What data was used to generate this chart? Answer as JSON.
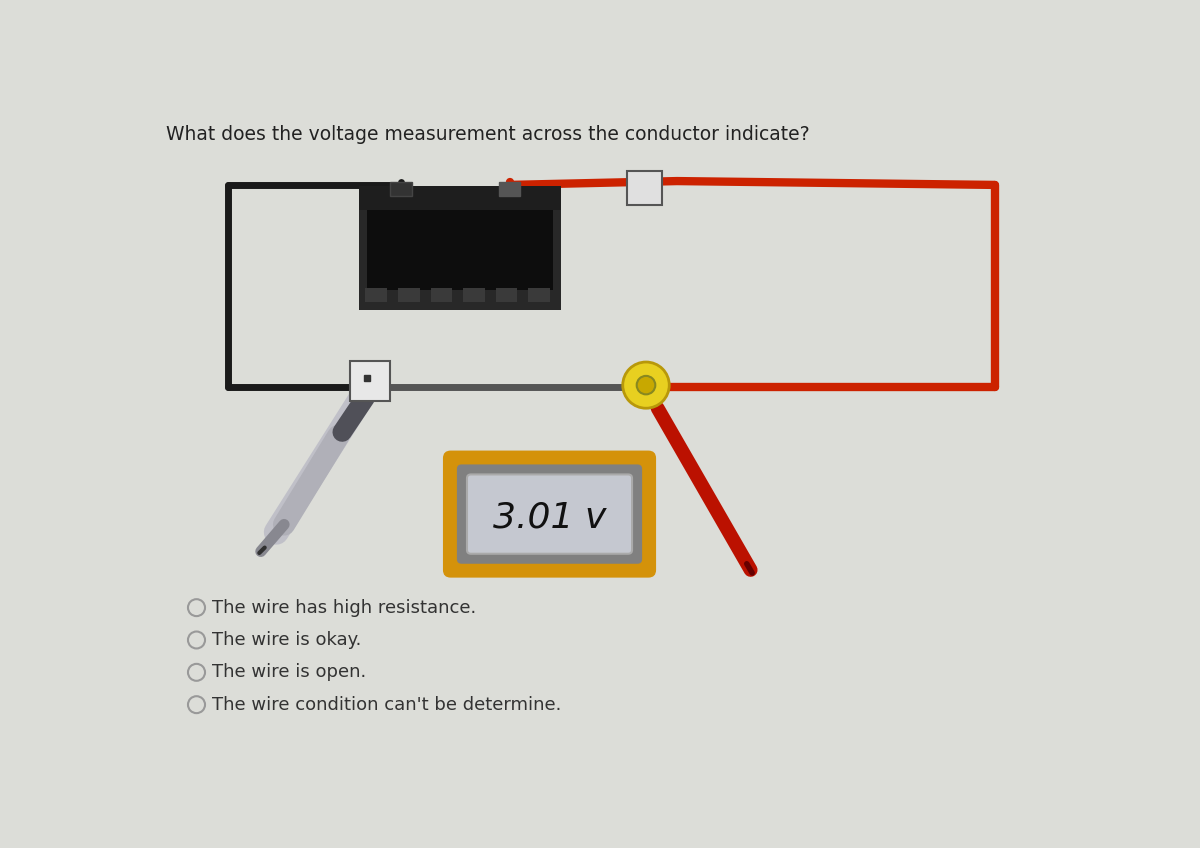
{
  "title": "What does the voltage measurement across the conductor indicate?",
  "title_fontsize": 13.5,
  "title_color": "#222222",
  "background_color": "#dcddd8",
  "options": [
    "The wire has high resistance.",
    "The wire is okay.",
    "The wire is open.",
    "The wire condition can't be determine."
  ],
  "voltage_reading": "3.01 v",
  "voltage_fontsize": 26,
  "meter_outer_color": "#d4920a",
  "meter_inner_color": "#808080",
  "meter_screen_color": "#c5c8d0",
  "wire_color_black": "#1a1a1a",
  "wire_color_red": "#cc2200",
  "battery_body_color": "#1c1c1c",
  "battery_case_color": "#2a2a2a",
  "probe_gray_color": "#a0a0a8",
  "probe_red_color": "#bb1100",
  "connector_yellow_color": "#e8d020",
  "connector_yellow_dark": "#b8980a",
  "option_fontsize": 13,
  "option_color": "#333333",
  "bg_light": "#e8e8e2"
}
